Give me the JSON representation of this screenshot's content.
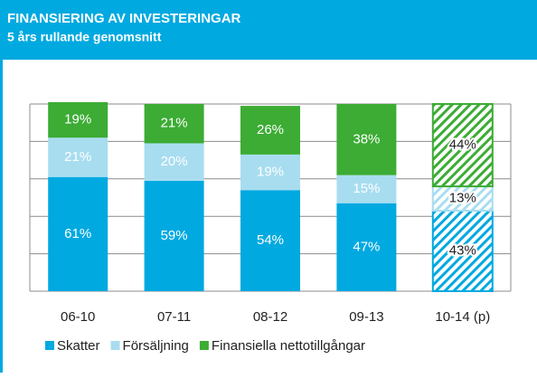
{
  "chart_data": {
    "type": "stacked_bar",
    "title": "FINANSIERING AV INVESTERINGAR",
    "subtitle": "5 års rullande genomsnitt",
    "categories": [
      "06-10",
      "07-11",
      "08-12",
      "09-13",
      "10-14 (p)"
    ],
    "hatched": [
      false,
      false,
      false,
      false,
      true
    ],
    "series": [
      {
        "name": "Skatter",
        "color": "#00a9e0",
        "values": [
          61,
          59,
          54,
          47,
          43
        ],
        "value_labels": [
          "61%",
          "59%",
          "54%",
          "47%",
          "43%"
        ]
      },
      {
        "name": "Försäljning",
        "color": "#a8ddf0",
        "values": [
          21,
          20,
          19,
          15,
          13
        ],
        "value_labels": [
          "21%",
          "20%",
          "19%",
          "15%",
          "13%"
        ]
      },
      {
        "name": "Finansiella nettotillgångar",
        "color": "#3cac34",
        "values": [
          19,
          21,
          26,
          38,
          44
        ],
        "value_labels": [
          "19%",
          "21%",
          "26%",
          "38%",
          "44%"
        ]
      }
    ],
    "ylim": [
      0,
      100
    ],
    "yticks": [
      0,
      20,
      40,
      60,
      80,
      100
    ],
    "grid": true
  }
}
